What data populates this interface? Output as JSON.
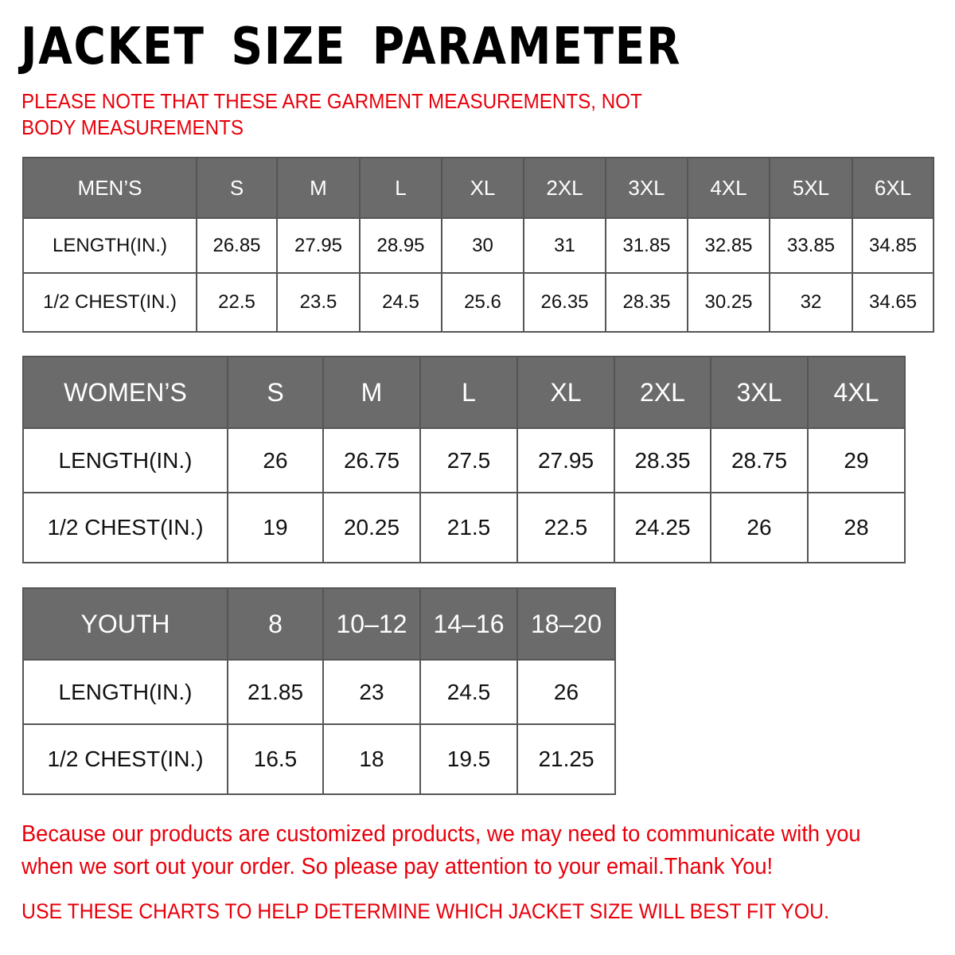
{
  "title": "JACKET  SIZE  PARAMETER",
  "note": "PLEASE NOTE THAT THESE ARE GARMENT MEASUREMENTS, NOT BODY MEASUREMENTS",
  "colors": {
    "header_bg": "#6b6b6b",
    "accent_red": "#e8000b"
  },
  "tables": {
    "men": {
      "header": [
        "MEN’S",
        "S",
        "M",
        "L",
        "XL",
        "2XL",
        "3XL",
        "4XL",
        "5XL",
        "6XL"
      ],
      "rows": [
        [
          "LENGTH(IN.)",
          "26.85",
          "27.95",
          "28.95",
          "30",
          "31",
          "31.85",
          "32.85",
          "33.85",
          "34.85"
        ],
        [
          "1/2 CHEST(IN.)",
          "22.5",
          "23.5",
          "24.5",
          "25.6",
          "26.35",
          "28.35",
          "30.25",
          "32",
          "34.65"
        ]
      ]
    },
    "women": {
      "header": [
        "WOMEN’S",
        "S",
        "M",
        "L",
        "XL",
        "2XL",
        "3XL",
        "4XL"
      ],
      "rows": [
        [
          "LENGTH(IN.)",
          "26",
          "26.75",
          "27.5",
          "27.95",
          "28.35",
          "28.75",
          "29"
        ],
        [
          "1/2 CHEST(IN.)",
          "19",
          "20.25",
          "21.5",
          "22.5",
          "24.25",
          "26",
          "28"
        ]
      ]
    },
    "youth": {
      "header": [
        "YOUTH",
        "8",
        "10–12",
        "14–16",
        "18–20"
      ],
      "rows": [
        [
          "LENGTH(IN.)",
          "21.85",
          "23",
          "24.5",
          "26"
        ],
        [
          "1/2 CHEST(IN.)",
          "16.5",
          "18",
          "19.5",
          "21.25"
        ]
      ]
    }
  },
  "footer": {
    "message": "Because our products are customized products, we may need to communicate with you when we sort out your order. So please pay attention to your email.Thank You!",
    "advice": "USE THESE CHARTS TO HELP DETERMINE WHICH JACKET SIZE WILL BEST FIT YOU."
  }
}
